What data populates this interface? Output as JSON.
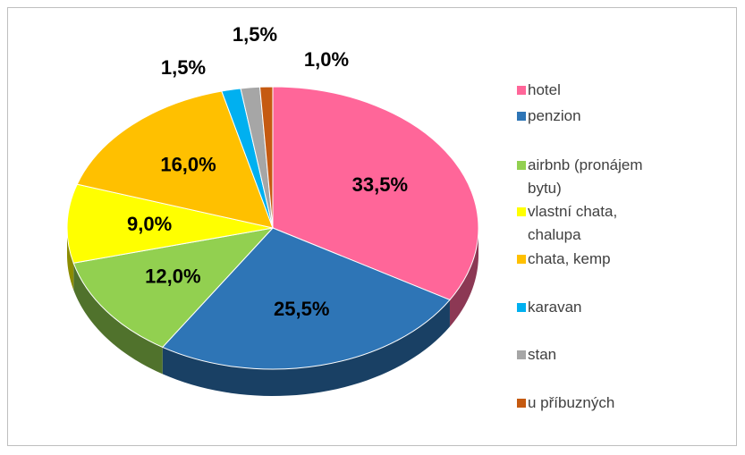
{
  "chart_data": {
    "type": "pie",
    "categories": [
      "hotel",
      "penzion",
      "airbnb (pronájem bytu)",
      "vlastní chata, chalupa",
      "chata, kemp",
      "karavan",
      "stan",
      "u příbuzných"
    ],
    "values": [
      33.5,
      25.5,
      12.0,
      9.0,
      16.0,
      1.5,
      1.5,
      1.0
    ],
    "value_labels": [
      "33,5%",
      "25,5%",
      "12,0%",
      "9,0%",
      "16,0%",
      "1,5%",
      "1,5%",
      "1,0%"
    ],
    "colors": [
      "#ff6699",
      "#2e75b6",
      "#92d050",
      "#ffff00",
      "#ffc000",
      "#00b0f0",
      "#a6a6a6",
      "#c55a11"
    ],
    "legend": "right"
  }
}
